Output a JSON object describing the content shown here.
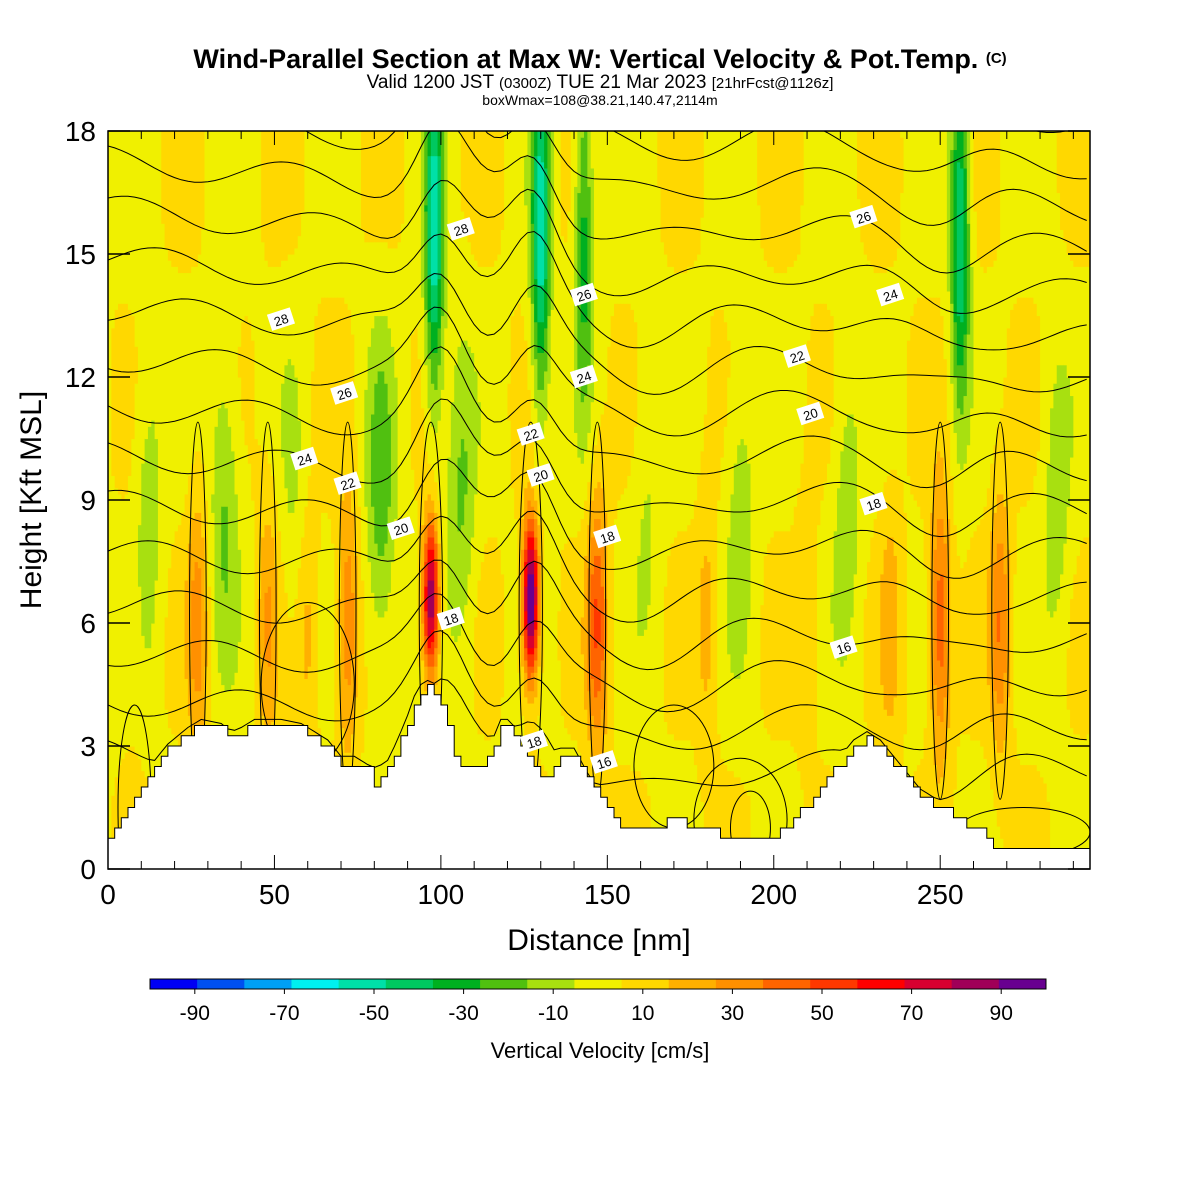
{
  "title": "Wind-Parallel Section at Max W: Vertical Velocity & Pot.Temp.",
  "copyright_mark": "(C)",
  "subtitle": {
    "valid": "Valid 1200 JST",
    "utc": "(0300Z)",
    "date": "TUE 21 Mar 2023",
    "forecast": "[21hrFcst@1126z]"
  },
  "subtitle2": "boxWmax=108@38.21,140.47,2114m",
  "chart_data": {
    "type": "heatmap",
    "xlabel": "Distance [nm]",
    "ylabel": "Height [Kft MSL]",
    "xlim": [
      0,
      295
    ],
    "ylim": [
      0,
      18
    ],
    "xticks": [
      0,
      50,
      100,
      150,
      200,
      250
    ],
    "yticks": [
      0,
      3,
      6,
      9,
      12,
      15,
      18
    ],
    "fill_variable": "Vertical Velocity [cm/s]",
    "contour_variable": "Potential Temperature",
    "colorbar": {
      "label": "Vertical Velocity [cm/s]",
      "tick_labels": [
        "-90",
        "-70",
        "-50",
        "-30",
        "-10",
        "10",
        "30",
        "50",
        "70",
        "90"
      ],
      "bounds": [
        -100,
        100
      ],
      "colors": [
        "#0000f5",
        "#0050f0",
        "#00a0f5",
        "#00f0f0",
        "#00e0a8",
        "#00c860",
        "#00b020",
        "#50c010",
        "#a8e010",
        "#f0f000",
        "#ffd800",
        "#ffb000",
        "#ff9000",
        "#ff6400",
        "#ff3800",
        "#ff0000",
        "#d80030",
        "#a00058",
        "#680090"
      ]
    },
    "updraft_columns": [
      {
        "x": 8,
        "vmax": 5
      },
      {
        "x": 27,
        "vmax": 25
      },
      {
        "x": 48,
        "vmax": 20
      },
      {
        "x": 60,
        "vmax": 15
      },
      {
        "x": 72,
        "vmax": 30
      },
      {
        "x": 97,
        "vmax": 85
      },
      {
        "x": 127,
        "vmax": 100
      },
      {
        "x": 147,
        "vmax": 40
      },
      {
        "x": 180,
        "vmax": 15
      },
      {
        "x": 210,
        "vmax": 10
      },
      {
        "x": 235,
        "vmax": 15
      },
      {
        "x": 250,
        "vmax": 40
      },
      {
        "x": 268,
        "vmax": 30
      }
    ],
    "downdraft_columns": [
      {
        "x": 12,
        "vmin": -15
      },
      {
        "x": 35,
        "vmin": -20
      },
      {
        "x": 56,
        "vmin": -10
      },
      {
        "x": 82,
        "vmin": -25
      },
      {
        "x": 98,
        "vmin": -55
      },
      {
        "x": 106,
        "vmin": -20
      },
      {
        "x": 130,
        "vmin": -55
      },
      {
        "x": 143,
        "vmin": -35
      },
      {
        "x": 162,
        "vmin": -10
      },
      {
        "x": 190,
        "vmin": -15
      },
      {
        "x": 222,
        "vmin": -15
      },
      {
        "x": 256,
        "vmin": -50
      },
      {
        "x": 285,
        "vmin": -15
      }
    ],
    "terrain_kft": [
      [
        0,
        0.8
      ],
      [
        3,
        1.0
      ],
      [
        6,
        1.5
      ],
      [
        9,
        2.0
      ],
      [
        12,
        2.3
      ],
      [
        15,
        2.6
      ],
      [
        18,
        2.9
      ],
      [
        21,
        3.1
      ],
      [
        24,
        3.3
      ],
      [
        28,
        3.5
      ],
      [
        34,
        3.4
      ],
      [
        37,
        3.2
      ],
      [
        40,
        3.3
      ],
      [
        44,
        3.5
      ],
      [
        52,
        3.5
      ],
      [
        58,
        3.4
      ],
      [
        62,
        3.2
      ],
      [
        66,
        3.0
      ],
      [
        70,
        2.6
      ],
      [
        74,
        2.6
      ],
      [
        78,
        2.4
      ],
      [
        80,
        2.0
      ],
      [
        84,
        2.5
      ],
      [
        87,
        3.0
      ],
      [
        90,
        3.6
      ],
      [
        93,
        4.3
      ],
      [
        97,
        4.5
      ],
      [
        100,
        4.0
      ],
      [
        102,
        3.5
      ],
      [
        104,
        2.8
      ],
      [
        106,
        2.6
      ],
      [
        108,
        2.6
      ],
      [
        112,
        2.5
      ],
      [
        115,
        2.9
      ],
      [
        118,
        3.5
      ],
      [
        121,
        3.5
      ],
      [
        124,
        3.0
      ],
      [
        127,
        2.7
      ],
      [
        130,
        2.2
      ],
      [
        133,
        2.3
      ],
      [
        136,
        2.8
      ],
      [
        140,
        2.8
      ],
      [
        144,
        2.2
      ],
      [
        148,
        1.7
      ],
      [
        150,
        1.4
      ],
      [
        154,
        1.1
      ],
      [
        160,
        1.1
      ],
      [
        166,
        1.1
      ],
      [
        170,
        1.3
      ],
      [
        174,
        1.1
      ],
      [
        178,
        1.0
      ],
      [
        182,
        0.9
      ],
      [
        186,
        0.7
      ],
      [
        194,
        0.7
      ],
      [
        200,
        0.8
      ],
      [
        204,
        1.0
      ],
      [
        208,
        1.4
      ],
      [
        212,
        1.8
      ],
      [
        216,
        2.3
      ],
      [
        220,
        2.6
      ],
      [
        224,
        3.0
      ],
      [
        228,
        3.2
      ],
      [
        232,
        3.0
      ],
      [
        236,
        2.6
      ],
      [
        240,
        2.2
      ],
      [
        244,
        1.8
      ],
      [
        248,
        1.6
      ],
      [
        250,
        1.5
      ],
      [
        254,
        1.3
      ],
      [
        258,
        1.1
      ],
      [
        262,
        0.9
      ],
      [
        266,
        0.6
      ],
      [
        270,
        0.5
      ],
      [
        280,
        0.4
      ],
      [
        295,
        0.4
      ]
    ],
    "contour_labels": [
      {
        "text": "28",
        "x": 52,
        "y": 13.4
      },
      {
        "text": "26",
        "x": 71,
        "y": 11.6
      },
      {
        "text": "24",
        "x": 59,
        "y": 10.0
      },
      {
        "text": "22",
        "x": 72,
        "y": 9.4
      },
      {
        "text": "20",
        "x": 88,
        "y": 8.3
      },
      {
        "text": "28",
        "x": 106,
        "y": 15.6
      },
      {
        "text": "26",
        "x": 143,
        "y": 14.0
      },
      {
        "text": "24",
        "x": 143,
        "y": 12.0
      },
      {
        "text": "22",
        "x": 127,
        "y": 10.6
      },
      {
        "text": "20",
        "x": 130,
        "y": 9.6
      },
      {
        "text": "18",
        "x": 150,
        "y": 8.1
      },
      {
        "text": "18",
        "x": 103,
        "y": 6.1
      },
      {
        "text": "18",
        "x": 128,
        "y": 3.1
      },
      {
        "text": "16",
        "x": 149,
        "y": 2.6
      },
      {
        "text": "26",
        "x": 227,
        "y": 15.9
      },
      {
        "text": "24",
        "x": 235,
        "y": 14.0
      },
      {
        "text": "22",
        "x": 207,
        "y": 12.5
      },
      {
        "text": "20",
        "x": 211,
        "y": 11.1
      },
      {
        "text": "18",
        "x": 230,
        "y": 8.9
      },
      {
        "text": "16",
        "x": 221,
        "y": 5.4
      }
    ]
  }
}
